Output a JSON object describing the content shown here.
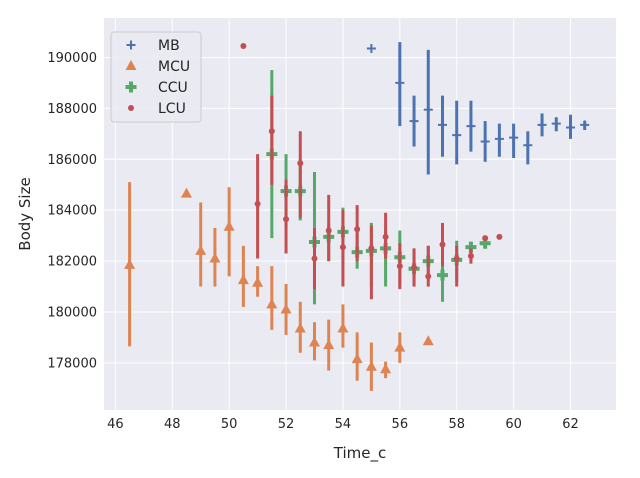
{
  "chart_data": {
    "type": "scatter",
    "xlabel": "Time_c",
    "ylabel": "Body Size",
    "xlim": [
      45.6,
      63.6
    ],
    "ylim": [
      176150,
      191550
    ],
    "xticks": [
      46,
      48,
      50,
      52,
      54,
      56,
      58,
      60,
      62
    ],
    "yticks": [
      178000,
      180000,
      182000,
      184000,
      186000,
      188000,
      190000
    ],
    "grid": true,
    "legend_position": "top-left",
    "series": [
      {
        "name": "MB",
        "marker": "plus",
        "color": "#4c72b0",
        "points": [
          {
            "x": 55.0,
            "y": 190350,
            "lo": 190350,
            "hi": 190350
          },
          {
            "x": 56.0,
            "y": 189000,
            "lo": 187300,
            "hi": 190600
          },
          {
            "x": 56.5,
            "y": 187500,
            "lo": 186500,
            "hi": 188500
          },
          {
            "x": 57.0,
            "y": 187950,
            "lo": 185400,
            "hi": 190300
          },
          {
            "x": 57.5,
            "y": 187350,
            "lo": 186100,
            "hi": 188500
          },
          {
            "x": 58.0,
            "y": 186950,
            "lo": 185800,
            "hi": 188300
          },
          {
            "x": 58.5,
            "y": 187300,
            "lo": 186300,
            "hi": 188300
          },
          {
            "x": 59.0,
            "y": 186700,
            "lo": 185900,
            "hi": 187500
          },
          {
            "x": 59.5,
            "y": 186800,
            "lo": 186100,
            "hi": 187400
          },
          {
            "x": 60.0,
            "y": 186850,
            "lo": 186050,
            "hi": 187400
          },
          {
            "x": 60.5,
            "y": 186550,
            "lo": 185800,
            "hi": 187100
          },
          {
            "x": 61.0,
            "y": 187350,
            "lo": 186900,
            "hi": 187800
          },
          {
            "x": 61.5,
            "y": 187400,
            "lo": 187100,
            "hi": 187650
          },
          {
            "x": 62.0,
            "y": 187250,
            "lo": 186800,
            "hi": 187750
          },
          {
            "x": 62.5,
            "y": 187350,
            "lo": 187150,
            "hi": 187500
          }
        ]
      },
      {
        "name": "MCU",
        "marker": "triangle",
        "color": "#dd8452",
        "points": [
          {
            "x": 46.5,
            "y": 181850,
            "lo": 178650,
            "hi": 185100
          },
          {
            "x": 48.5,
            "y": 184650,
            "lo": 184650,
            "hi": 184650
          },
          {
            "x": 49.0,
            "y": 182400,
            "lo": 181000,
            "hi": 184300
          },
          {
            "x": 49.5,
            "y": 182100,
            "lo": 181000,
            "hi": 183300
          },
          {
            "x": 50.0,
            "y": 183350,
            "lo": 181400,
            "hi": 184900
          },
          {
            "x": 50.5,
            "y": 181250,
            "lo": 180200,
            "hi": 182600
          },
          {
            "x": 51.0,
            "y": 181150,
            "lo": 180600,
            "hi": 181800
          },
          {
            "x": 51.5,
            "y": 180300,
            "lo": 179300,
            "hi": 181800
          },
          {
            "x": 52.0,
            "y": 180100,
            "lo": 179100,
            "hi": 181100
          },
          {
            "x": 52.5,
            "y": 179350,
            "lo": 178400,
            "hi": 180400
          },
          {
            "x": 53.0,
            "y": 178800,
            "lo": 178100,
            "hi": 179600
          },
          {
            "x": 53.5,
            "y": 178700,
            "lo": 177700,
            "hi": 179700
          },
          {
            "x": 54.0,
            "y": 179350,
            "lo": 178600,
            "hi": 180300
          },
          {
            "x": 54.5,
            "y": 178150,
            "lo": 177300,
            "hi": 179200
          },
          {
            "x": 55.0,
            "y": 177850,
            "lo": 176900,
            "hi": 178800
          },
          {
            "x": 55.5,
            "y": 177750,
            "lo": 177400,
            "hi": 178050
          },
          {
            "x": 56.0,
            "y": 178600,
            "lo": 178000,
            "hi": 179200
          },
          {
            "x": 57.0,
            "y": 178850,
            "lo": 178850,
            "hi": 178850
          }
        ]
      },
      {
        "name": "CCU",
        "marker": "plus-filled",
        "color": "#55a868",
        "points": [
          {
            "x": 51.5,
            "y": 186200,
            "lo": 182900,
            "hi": 189500
          },
          {
            "x": 52.0,
            "y": 184750,
            "lo": 183300,
            "hi": 186200
          },
          {
            "x": 52.5,
            "y": 184750,
            "lo": 183600,
            "hi": 186000
          },
          {
            "x": 53.0,
            "y": 182750,
            "lo": 180300,
            "hi": 185500
          },
          {
            "x": 53.5,
            "y": 182950,
            "lo": 182000,
            "hi": 183500
          },
          {
            "x": 54.0,
            "y": 183150,
            "lo": 182000,
            "hi": 184100
          },
          {
            "x": 54.5,
            "y": 182350,
            "lo": 181700,
            "hi": 183100
          },
          {
            "x": 55.0,
            "y": 182400,
            "lo": 181000,
            "hi": 183500
          },
          {
            "x": 55.5,
            "y": 182500,
            "lo": 181000,
            "hi": 183300
          },
          {
            "x": 56.0,
            "y": 182150,
            "lo": 181000,
            "hi": 183200
          },
          {
            "x": 56.5,
            "y": 181700,
            "lo": 181000,
            "hi": 182400
          },
          {
            "x": 57.0,
            "y": 182000,
            "lo": 181300,
            "hi": 182600
          },
          {
            "x": 57.5,
            "y": 181450,
            "lo": 180400,
            "hi": 182700
          },
          {
            "x": 58.0,
            "y": 182050,
            "lo": 181200,
            "hi": 182800
          },
          {
            "x": 58.5,
            "y": 182550,
            "lo": 182300,
            "hi": 182750
          },
          {
            "x": 59.0,
            "y": 182700,
            "lo": 182550,
            "hi": 182850
          }
        ]
      },
      {
        "name": "LCU",
        "marker": "circle",
        "color": "#c44e52",
        "points": [
          {
            "x": 50.5,
            "y": 190450,
            "lo": 190450,
            "hi": 190450
          },
          {
            "x": 51.0,
            "y": 184250,
            "lo": 182100,
            "hi": 186200
          },
          {
            "x": 51.5,
            "y": 187100,
            "lo": 185000,
            "hi": 188500
          },
          {
            "x": 52.0,
            "y": 183650,
            "lo": 182300,
            "hi": 185200
          },
          {
            "x": 52.5,
            "y": 185850,
            "lo": 183700,
            "hi": 187100
          },
          {
            "x": 53.0,
            "y": 182100,
            "lo": 180900,
            "hi": 183300
          },
          {
            "x": 53.5,
            "y": 183200,
            "lo": 182000,
            "hi": 184600
          },
          {
            "x": 54.0,
            "y": 182550,
            "lo": 181000,
            "hi": 184000
          },
          {
            "x": 54.5,
            "y": 183250,
            "lo": 182000,
            "hi": 184200
          },
          {
            "x": 55.0,
            "y": 182500,
            "lo": 180500,
            "hi": 183400
          },
          {
            "x": 55.5,
            "y": 182950,
            "lo": 182100,
            "hi": 183900
          },
          {
            "x": 56.0,
            "y": 181800,
            "lo": 180900,
            "hi": 182700
          },
          {
            "x": 56.5,
            "y": 181750,
            "lo": 181000,
            "hi": 182500
          },
          {
            "x": 57.0,
            "y": 181400,
            "lo": 181000,
            "hi": 182600
          },
          {
            "x": 57.5,
            "y": 182650,
            "lo": 181800,
            "hi": 183500
          },
          {
            "x": 58.0,
            "y": 182100,
            "lo": 181000,
            "hi": 182600
          },
          {
            "x": 58.5,
            "y": 182200,
            "lo": 181900,
            "hi": 182500
          },
          {
            "x": 59.0,
            "y": 182900,
            "lo": 182900,
            "hi": 182900
          },
          {
            "x": 59.5,
            "y": 182950,
            "lo": 182950,
            "hi": 182950
          }
        ]
      }
    ]
  }
}
